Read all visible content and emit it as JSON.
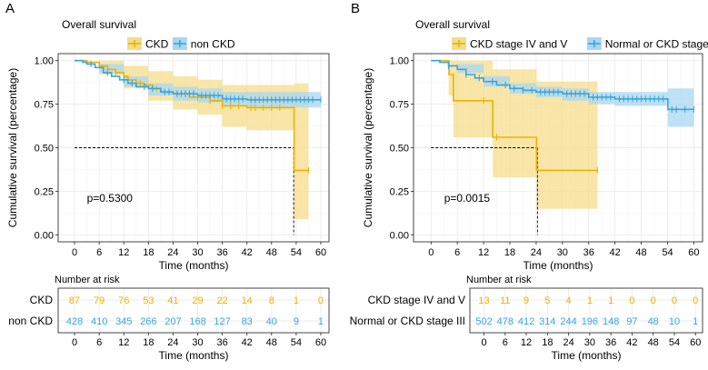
{
  "colors": {
    "gold": "#E8B400",
    "gold_band": "#F5DC8A",
    "blue": "#3AA4DC",
    "blue_band": "#A9D7F2",
    "grid": "#EBEBEB",
    "panel_border": "#333333"
  },
  "chart_data": [
    {
      "panel_letter": "A",
      "type": "line",
      "subtype": "kaplan-meier",
      "title": "Overall survival",
      "ylabel": "Cumulative survival (percentage)",
      "xlabel": "Time (months)",
      "xlim": [
        -4,
        62
      ],
      "ylim": [
        -0.04,
        1.04
      ],
      "x_ticks": [
        0,
        6,
        12,
        18,
        24,
        30,
        36,
        42,
        48,
        54,
        60
      ],
      "y_ticks": [
        0.0,
        0.25,
        0.5,
        0.75,
        1.0
      ],
      "y_tick_labels": [
        "0.00",
        "0.25",
        "0.50",
        "0.75",
        "1.00"
      ],
      "pvalue": "p=0.5300",
      "median_line": {
        "y": 0.5,
        "x": 53.4
      },
      "legend": [
        "CKD",
        "non CKD"
      ],
      "series": [
        {
          "name": "CKD",
          "color_key": "gold",
          "steps": [
            [
              0,
              1.0
            ],
            [
              3,
              0.99
            ],
            [
              6,
              0.97
            ],
            [
              8,
              0.95
            ],
            [
              10,
              0.93
            ],
            [
              12,
              0.91
            ],
            [
              13,
              0.89
            ],
            [
              15,
              0.87
            ],
            [
              17,
              0.86
            ],
            [
              19,
              0.84
            ],
            [
              21,
              0.82
            ],
            [
              24,
              0.81
            ],
            [
              28,
              0.79
            ],
            [
              33,
              0.77
            ],
            [
              36,
              0.74
            ],
            [
              41,
              0.74
            ],
            [
              42,
              0.73
            ],
            [
              53.4,
              0.73
            ],
            [
              53.5,
              0.37
            ],
            [
              57,
              0.37
            ]
          ],
          "band": [
            [
              0,
              1.0,
              1.0
            ],
            [
              6,
              0.92,
              1.0
            ],
            [
              12,
              0.84,
              0.97
            ],
            [
              18,
              0.77,
              0.94
            ],
            [
              24,
              0.72,
              0.91
            ],
            [
              30,
              0.69,
              0.89
            ],
            [
              36,
              0.62,
              0.86
            ],
            [
              42,
              0.6,
              0.86
            ],
            [
              53.4,
              0.6,
              0.86
            ],
            [
              53.5,
              0.09,
              0.87
            ],
            [
              57,
              0.09,
              0.87
            ]
          ],
          "censor_x": [
            10,
            13,
            16,
            20,
            25,
            27,
            30,
            33,
            36,
            38,
            40,
            43,
            44,
            46,
            48,
            50,
            57
          ]
        },
        {
          "name": "non CKD",
          "color_key": "blue",
          "steps": [
            [
              0,
              1.0
            ],
            [
              2,
              0.99
            ],
            [
              3,
              0.98
            ],
            [
              5,
              0.96
            ],
            [
              7,
              0.93
            ],
            [
              9,
              0.91
            ],
            [
              11,
              0.89
            ],
            [
              13,
              0.87
            ],
            [
              15,
              0.85
            ],
            [
              18,
              0.84
            ],
            [
              21,
              0.82
            ],
            [
              24,
              0.81
            ],
            [
              30,
              0.8
            ],
            [
              36,
              0.78
            ],
            [
              42,
              0.775
            ],
            [
              60,
              0.775
            ]
          ],
          "band": [
            [
              0,
              1.0,
              1.0
            ],
            [
              6,
              0.93,
              0.98
            ],
            [
              12,
              0.85,
              0.91
            ],
            [
              18,
              0.8,
              0.87
            ],
            [
              24,
              0.77,
              0.85
            ],
            [
              30,
              0.76,
              0.84
            ],
            [
              36,
              0.74,
              0.82
            ],
            [
              42,
              0.73,
              0.82
            ],
            [
              60,
              0.72,
              0.83
            ]
          ],
          "censor_x": [
            4,
            8,
            12,
            14,
            17,
            19,
            22,
            23,
            25,
            26,
            27,
            28,
            29,
            31,
            32,
            33,
            34,
            35,
            37,
            38,
            39,
            40,
            41,
            43,
            44,
            45,
            46,
            47,
            48,
            49,
            50,
            51,
            52,
            53,
            54,
            55,
            56,
            57,
            58,
            60
          ]
        }
      ],
      "risk_table": {
        "title": "Number at risk",
        "xlabel": "Time (months)",
        "times": [
          0,
          6,
          12,
          18,
          24,
          30,
          36,
          42,
          48,
          54,
          60
        ],
        "rows": [
          {
            "label": "CKD",
            "color_key": "gold",
            "counts": [
              "87",
              "79",
              "76",
              "53",
              "41",
              "29",
              "22",
              "14",
              "8",
              "1",
              "0"
            ]
          },
          {
            "label": "non CKD",
            "color_key": "blue",
            "counts": [
              "428",
              "410",
              "345",
              "266",
              "207",
              "168",
              "127",
              "83",
              "40",
              "9",
              "1"
            ]
          }
        ]
      }
    },
    {
      "panel_letter": "B",
      "type": "line",
      "subtype": "kaplan-meier",
      "title": "Overall survival",
      "ylabel": "Cumulative survival (percentage)",
      "xlabel": "Time (months)",
      "xlim": [
        -4,
        62
      ],
      "ylim": [
        -0.04,
        1.04
      ],
      "x_ticks": [
        0,
        6,
        12,
        18,
        24,
        30,
        36,
        42,
        48,
        54,
        60
      ],
      "y_ticks": [
        0.0,
        0.25,
        0.5,
        0.75,
        1.0
      ],
      "y_tick_labels": [
        "0.00",
        "0.25",
        "0.50",
        "0.75",
        "1.00"
      ],
      "pvalue": "p=0.0015",
      "median_line": {
        "y": 0.5,
        "x": 24.3
      },
      "legend": [
        "CKD stage IV and V",
        "Normal or CKD stage III"
      ],
      "series": [
        {
          "name": "CKD stage IV and V",
          "color_key": "gold",
          "steps": [
            [
              0,
              1.0
            ],
            [
              4,
              1.0
            ],
            [
              4.1,
              0.92
            ],
            [
              5,
              0.92
            ],
            [
              5.1,
              0.77
            ],
            [
              14,
              0.77
            ],
            [
              14.1,
              0.56
            ],
            [
              24,
              0.56
            ],
            [
              24.1,
              0.37
            ],
            [
              38,
              0.37
            ]
          ],
          "band": [
            [
              0,
              1.0,
              1.0
            ],
            [
              4,
              0.8,
              1.0
            ],
            [
              5.1,
              0.56,
              1.0
            ],
            [
              14.1,
              0.33,
              0.95
            ],
            [
              24.1,
              0.15,
              0.88
            ],
            [
              38,
              0.15,
              0.88
            ]
          ],
          "censor_x": [
            12,
            15,
            38
          ]
        },
        {
          "name": "Normal or CKD stage III",
          "color_key": "blue",
          "steps": [
            [
              0,
              1.0
            ],
            [
              2,
              0.99
            ],
            [
              4,
              0.97
            ],
            [
              6,
              0.95
            ],
            [
              8,
              0.92
            ],
            [
              10,
              0.9
            ],
            [
              12,
              0.88
            ],
            [
              15,
              0.86
            ],
            [
              18,
              0.84
            ],
            [
              21,
              0.83
            ],
            [
              24,
              0.82
            ],
            [
              30,
              0.81
            ],
            [
              36,
              0.79
            ],
            [
              42,
              0.78
            ],
            [
              54,
              0.78
            ],
            [
              54.1,
              0.72
            ],
            [
              60,
              0.72
            ]
          ],
          "band": [
            [
              0,
              1.0,
              1.0
            ],
            [
              6,
              0.93,
              0.98
            ],
            [
              12,
              0.85,
              0.91
            ],
            [
              18,
              0.81,
              0.87
            ],
            [
              24,
              0.79,
              0.85
            ],
            [
              30,
              0.77,
              0.84
            ],
            [
              36,
              0.75,
              0.82
            ],
            [
              42,
              0.74,
              0.82
            ],
            [
              54,
              0.74,
              0.82
            ],
            [
              54.1,
              0.62,
              0.84
            ],
            [
              60,
              0.62,
              0.84
            ]
          ],
          "censor_x": [
            4,
            8,
            11,
            14,
            17,
            19,
            21,
            23,
            25,
            26,
            27,
            28,
            29,
            31,
            32,
            33,
            34,
            35,
            37,
            38,
            39,
            40,
            41,
            43,
            44,
            45,
            46,
            47,
            48,
            49,
            50,
            51,
            52,
            53,
            55,
            56,
            58,
            60
          ]
        }
      ],
      "risk_table": {
        "title": "Number at risk",
        "xlabel": "Time (months)",
        "times": [
          0,
          6,
          12,
          18,
          24,
          30,
          36,
          42,
          48,
          54,
          60
        ],
        "rows": [
          {
            "label": "CKD stage IV and V",
            "color_key": "gold",
            "counts": [
              "13",
              "11",
              "9",
              "5",
              "4",
              "1",
              "1",
              "0",
              "0",
              "0",
              "0"
            ]
          },
          {
            "label": "Normal or CKD stage III",
            "color_key": "blue",
            "counts": [
              "502",
              "478",
              "412",
              "314",
              "244",
              "196",
              "148",
              "97",
              "48",
              "10",
              "1"
            ]
          }
        ]
      }
    }
  ]
}
